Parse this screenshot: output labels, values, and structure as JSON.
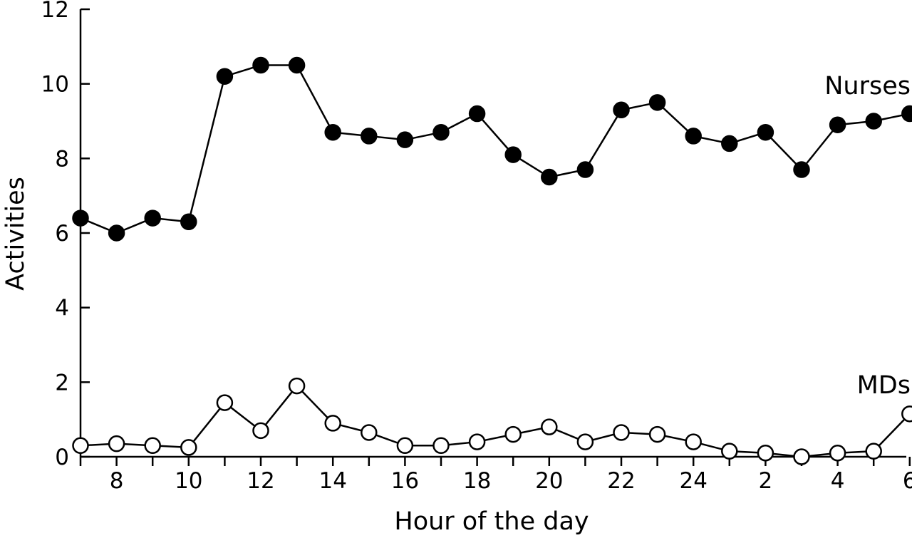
{
  "chart_data": {
    "type": "line",
    "xlabel": "Hour of the day",
    "ylabel": "Activities",
    "ylim": [
      0,
      12
    ],
    "yticks": [
      "0",
      "2",
      "4",
      "6",
      "8",
      "10",
      "12"
    ],
    "x": [
      "7",
      "8",
      "9",
      "10",
      "11",
      "12",
      "13",
      "14",
      "15",
      "16",
      "17",
      "18",
      "19",
      "20",
      "21",
      "22",
      "23",
      "24",
      "1",
      "2",
      "3",
      "4",
      "5",
      "6"
    ],
    "xtick_labels": [
      "8",
      "10",
      "12",
      "14",
      "16",
      "18",
      "20",
      "22",
      "24",
      "2",
      "4",
      "6"
    ],
    "grid": false,
    "series": [
      {
        "name": "Nurses",
        "marker": "filled-circle",
        "values": [
          6.4,
          6.0,
          6.4,
          6.3,
          10.2,
          10.5,
          10.5,
          8.7,
          8.6,
          8.5,
          8.7,
          9.2,
          8.1,
          7.5,
          7.7,
          9.3,
          9.5,
          8.6,
          8.4,
          8.7,
          7.7,
          8.9,
          9.0,
          9.2
        ]
      },
      {
        "name": "MDs",
        "marker": "open-circle",
        "values": [
          0.3,
          0.35,
          0.3,
          0.25,
          1.45,
          0.7,
          1.9,
          0.9,
          0.65,
          0.3,
          0.3,
          0.4,
          0.6,
          0.8,
          0.4,
          0.65,
          0.6,
          0.4,
          0.15,
          0.1,
          0.0,
          0.1,
          0.15,
          1.15
        ]
      }
    ]
  }
}
